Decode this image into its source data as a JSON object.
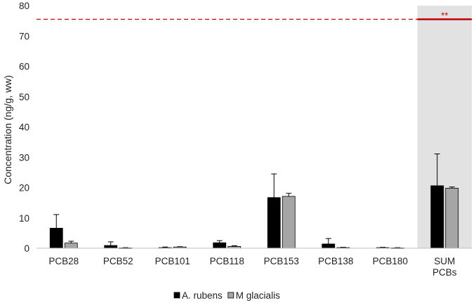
{
  "chart_data": {
    "type": "bar",
    "title": "",
    "xlabel": "",
    "ylabel": "Concentration (ng/g, ww)",
    "ylim": [
      0,
      80
    ],
    "yticks": [
      0,
      10,
      20,
      30,
      40,
      50,
      60,
      70,
      80
    ],
    "grid": false,
    "legend_position": "bottom-center",
    "categories": [
      "PCB28",
      "PCB52",
      "PCB101",
      "PCB118",
      "PCB153",
      "PCB138",
      "PCB180",
      "SUM PCBs"
    ],
    "highlighted_category": "SUM PCBs",
    "highlight_color": "#e2e2e2",
    "series": [
      {
        "name": "A. rubens",
        "color": "#000000",
        "values": [
          6.6,
          0.9,
          0.2,
          1.8,
          16.7,
          1.4,
          0.2,
          20.6
        ],
        "error": [
          4.5,
          1.2,
          0.2,
          0.7,
          7.8,
          1.8,
          0.1,
          10.5
        ]
      },
      {
        "name": "M glacialis",
        "color": "#a6a6a6",
        "values": [
          1.7,
          0.1,
          0.4,
          0.6,
          17.1,
          0.2,
          0.1,
          19.8
        ],
        "error": [
          0.6,
          0.1,
          0.1,
          0.2,
          1.0,
          0.1,
          0.1,
          0.4
        ]
      }
    ],
    "reference_line": {
      "value": 75.5,
      "color": "#c00000",
      "style": "dashed"
    },
    "annotation": {
      "text": "**",
      "category": "SUM PCBs",
      "value": 75.5,
      "color": "#c00000"
    }
  }
}
